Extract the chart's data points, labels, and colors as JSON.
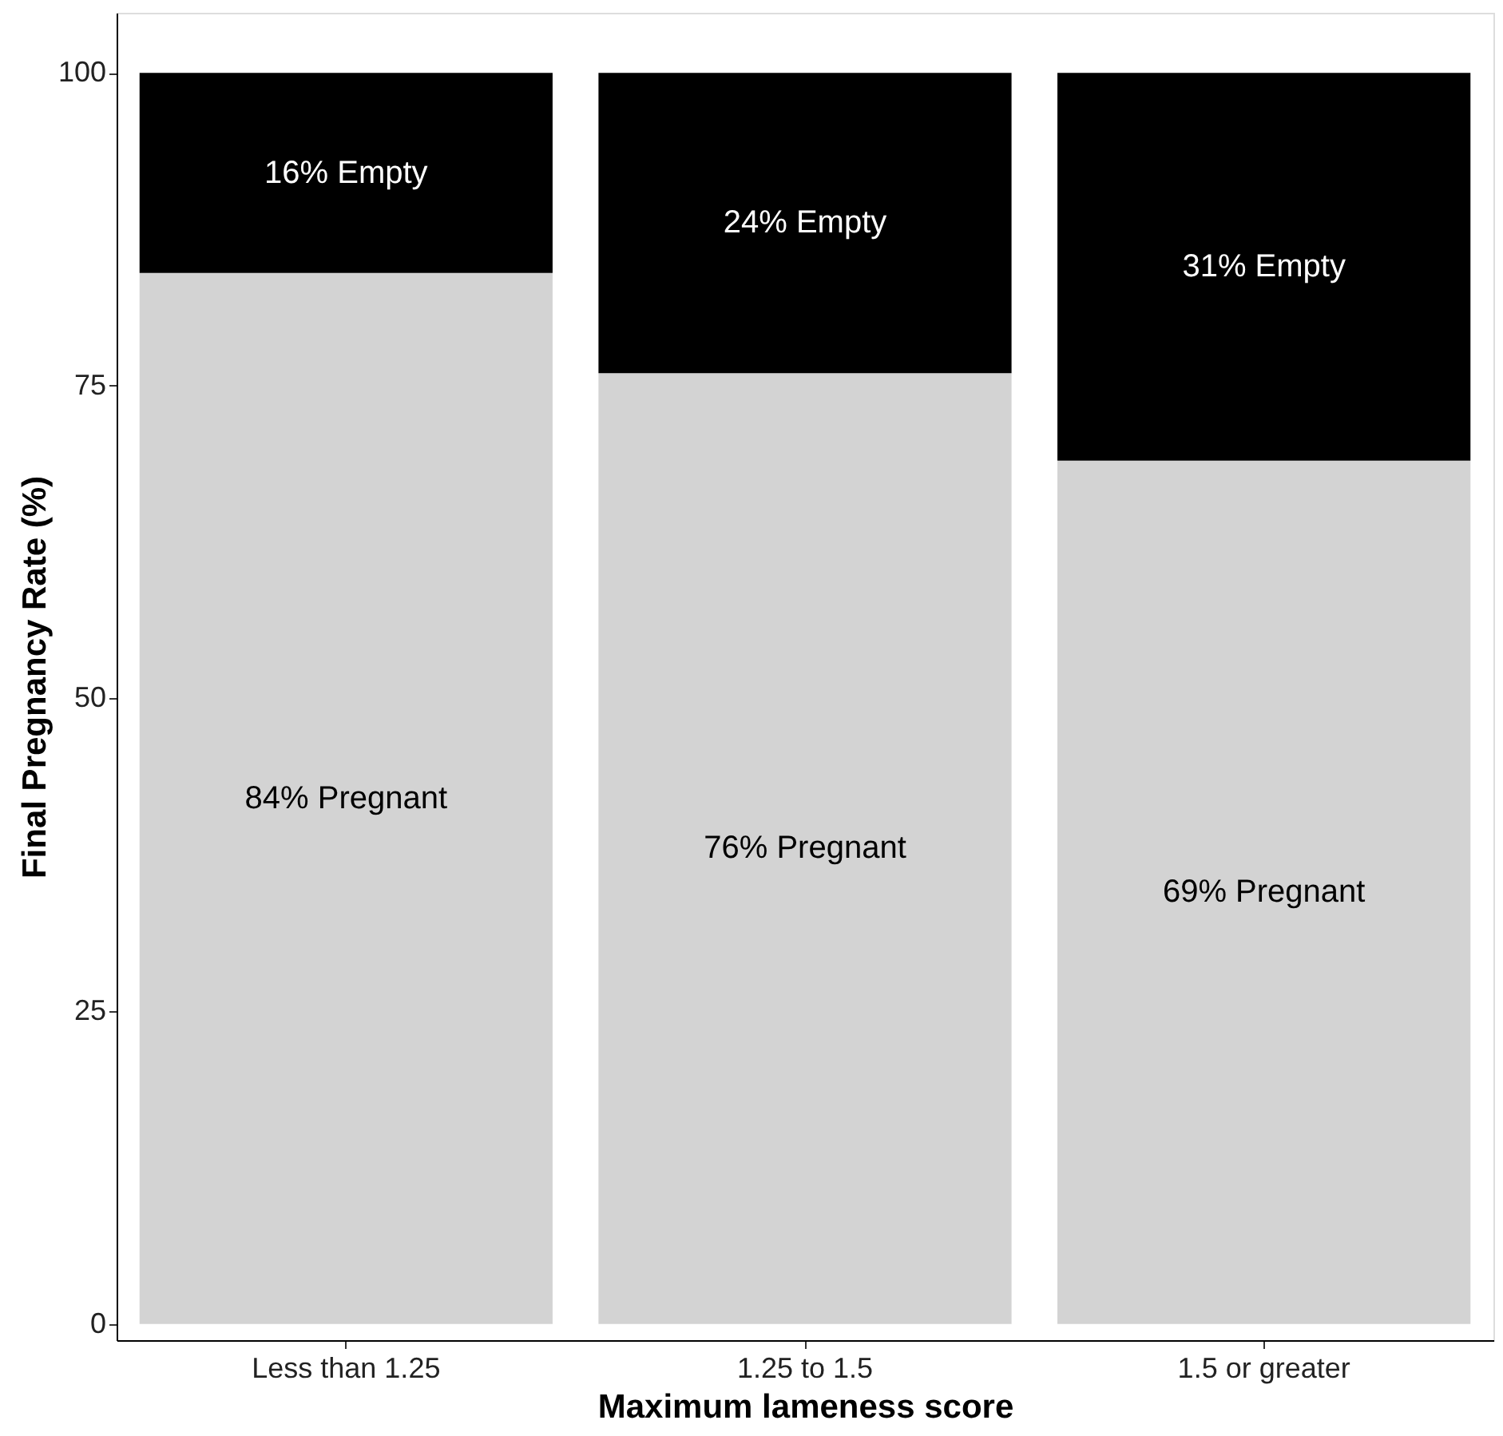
{
  "chart_data": {
    "type": "bar",
    "stacked": true,
    "xlabel": "Maximum lameness score",
    "ylabel": "Final Pregnancy Rate (%)",
    "categories": [
      "Less than 1.25",
      "1.25 to 1.5",
      "1.5 or greater"
    ],
    "series": [
      {
        "color": "#d3d3d3",
        "values": [
          84,
          76,
          69
        ],
        "value_labels": [
          "84% Pregnant",
          "76% Pregnant",
          "69% Pregnant"
        ]
      },
      {
        "color": "#000000",
        "values": [
          16,
          24,
          31
        ],
        "value_labels": [
          "16% Empty",
          "24% Empty",
          "31% Empty"
        ]
      }
    ],
    "ylim": [
      -1.3,
      104.8
    ],
    "yticks": [
      0,
      25,
      50,
      75,
      100
    ],
    "grid": false,
    "legend": false
  }
}
